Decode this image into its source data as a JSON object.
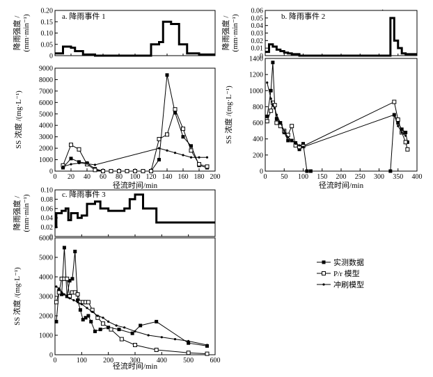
{
  "chart_data": [
    {
      "type": "line",
      "title": "a. 降雨事件 1",
      "rain_ylabel": "降雨强度 /",
      "rain_ylabel_unit": "(mm·min⁻¹)",
      "rain_ylim": [
        0,
        0.2
      ],
      "rain_yticks": [
        "0",
        "0.05",
        "0.10",
        "0.15",
        "0.20"
      ],
      "rain_ytick_values": [
        0,
        0.05,
        0.1,
        0.15,
        0.2
      ],
      "rain_steps": [
        [
          0,
          0.01
        ],
        [
          5,
          0.01
        ],
        [
          10,
          0.04
        ],
        [
          20,
          0.035
        ],
        [
          25,
          0.02
        ],
        [
          35,
          0.005
        ],
        [
          50,
          0
        ],
        [
          120,
          0
        ],
        [
          120,
          0.05
        ],
        [
          130,
          0.06
        ],
        [
          135,
          0.15
        ],
        [
          145,
          0.14
        ],
        [
          155,
          0.05
        ],
        [
          165,
          0.01
        ],
        [
          180,
          0.005
        ],
        [
          190,
          0.005
        ]
      ],
      "ss_ylabel": "SS 浓度 /(mg·L⁻¹)",
      "ss_ylim": [
        0,
        9000
      ],
      "ss_yticks": [
        "0",
        "1000",
        "2000",
        "3000",
        "4000",
        "5000",
        "6000",
        "7000",
        "8000",
        "9000"
      ],
      "ss_ytick_values": [
        0,
        1000,
        2000,
        3000,
        4000,
        5000,
        6000,
        7000,
        8000,
        9000
      ],
      "xlabel": "径流时间/min",
      "xlim": [
        0,
        200
      ],
      "xticks": [
        "0",
        "20",
        "40",
        "60",
        "80",
        "100",
        "120",
        "140",
        "160",
        "180",
        "200"
      ],
      "xtick_values": [
        0,
        20,
        40,
        60,
        80,
        100,
        120,
        140,
        160,
        180,
        200
      ],
      "series": [
        {
          "name": "实测数据",
          "marker": "filled-square",
          "x": [
            10,
            20,
            30,
            40,
            50,
            60,
            70,
            80,
            90,
            100,
            110,
            120,
            130,
            140,
            150,
            160,
            170,
            180,
            190
          ],
          "y": [
            300,
            1100,
            800,
            700,
            200,
            0,
            0,
            0,
            0,
            0,
            0,
            0,
            1000,
            8400,
            5100,
            3000,
            2200,
            500,
            300
          ]
        },
        {
          "name": "P/r 模型",
          "marker": "open-square",
          "x": [
            10,
            20,
            30,
            40,
            50,
            60,
            70,
            80,
            90,
            100,
            110,
            120,
            130,
            140,
            150,
            160,
            170,
            180,
            190
          ],
          "y": [
            500,
            2300,
            1900,
            600,
            100,
            0,
            0,
            0,
            0,
            0,
            0,
            0,
            2800,
            3200,
            5400,
            3700,
            1800,
            600,
            400
          ]
        },
        {
          "name": "冲刷模型",
          "marker": "dot",
          "x": [
            10,
            20,
            30,
            40,
            50,
            130,
            140,
            150,
            160,
            170,
            180,
            190
          ],
          "y": [
            400,
            600,
            700,
            650,
            550,
            2000,
            1800,
            1600,
            1400,
            1200,
            1200,
            1200
          ]
        }
      ]
    },
    {
      "type": "line",
      "title": "b. 降雨事件 2",
      "rain_ylabel": "降雨强度 /",
      "rain_ylabel_unit": "(mm·min⁻¹)",
      "rain_ylim": [
        0,
        0.06
      ],
      "rain_yticks": [
        "0",
        "0.01",
        "0.02",
        "0.03",
        "0.04",
        "0.05",
        "0.06"
      ],
      "rain_ytick_values": [
        0,
        0.01,
        0.02,
        0.03,
        0.04,
        0.05,
        0.06
      ],
      "rain_steps": [
        [
          0,
          0.005
        ],
        [
          10,
          0.015
        ],
        [
          20,
          0.012
        ],
        [
          30,
          0.008
        ],
        [
          40,
          0.006
        ],
        [
          50,
          0.004
        ],
        [
          60,
          0.003
        ],
        [
          70,
          0.002
        ],
        [
          90,
          0
        ],
        [
          330,
          0
        ],
        [
          330,
          0.05
        ],
        [
          340,
          0.02
        ],
        [
          350,
          0.01
        ],
        [
          360,
          0.003
        ],
        [
          370,
          0.002
        ]
      ],
      "ss_ylabel": "SS 浓度 /(mg·L⁻¹)",
      "ss_ylim": [
        0,
        1400
      ],
      "ss_yticks": [
        "0",
        "200",
        "400",
        "600",
        "800",
        "1000",
        "1200",
        "1400"
      ],
      "ss_ytick_values": [
        0,
        200,
        400,
        600,
        800,
        1000,
        1200,
        1400
      ],
      "xlabel": "径流时间/min",
      "xlim": [
        0,
        400
      ],
      "xticks": [
        "0",
        "50",
        "100",
        "150",
        "200",
        "250",
        "300",
        "350",
        "400"
      ],
      "xtick_values": [
        0,
        50,
        100,
        150,
        200,
        250,
        300,
        350,
        400
      ],
      "series": [
        {
          "name": "实测数据",
          "marker": "filled-square",
          "x": [
            5,
            15,
            20,
            25,
            30,
            40,
            50,
            60,
            70,
            80,
            90,
            100,
            110,
            120,
            330,
            340,
            350,
            360,
            370,
            375
          ],
          "y": [
            680,
            1000,
            1350,
            820,
            650,
            600,
            480,
            380,
            380,
            350,
            270,
            340,
            0,
            0,
            0,
            700,
            600,
            520,
            480,
            360
          ]
        },
        {
          "name": "P/r 模型",
          "marker": "open-square",
          "x": [
            5,
            15,
            20,
            25,
            30,
            40,
            50,
            60,
            70,
            80,
            90,
            100,
            340,
            350,
            360,
            370,
            375
          ],
          "y": [
            620,
            750,
            850,
            820,
            600,
            560,
            500,
            450,
            560,
            320,
            300,
            310,
            860,
            640,
            480,
            360,
            270
          ]
        },
        {
          "name": "冲刷模型",
          "marker": "dot",
          "x": [
            5,
            15,
            20,
            25,
            30,
            40,
            50,
            60,
            70,
            80,
            90,
            100,
            340,
            350,
            360,
            370
          ],
          "y": [
            1100,
            900,
            820,
            780,
            700,
            600,
            500,
            420,
            380,
            340,
            320,
            300,
            700,
            560,
            480,
            440
          ]
        }
      ]
    },
    {
      "type": "line",
      "title": "c. 降雨事件 3",
      "rain_ylabel": "降雨强度 /",
      "rain_ylabel_unit": "(mm·min⁻¹)",
      "rain_ylim": [
        0,
        0.1
      ],
      "rain_yticks": [
        "0",
        "0.02",
        "0.04",
        "0.06",
        "0.08",
        "0.10"
      ],
      "rain_ytick_values": [
        0,
        0.02,
        0.04,
        0.06,
        0.08,
        0.1
      ],
      "rain_steps": [
        [
          0,
          0.02
        ],
        [
          5,
          0.05
        ],
        [
          25,
          0.055
        ],
        [
          40,
          0.06
        ],
        [
          50,
          0.035
        ],
        [
          60,
          0.05
        ],
        [
          85,
          0.04
        ],
        [
          100,
          0.045
        ],
        [
          120,
          0.07
        ],
        [
          150,
          0.075
        ],
        [
          170,
          0.06
        ],
        [
          200,
          0.055
        ],
        [
          260,
          0.06
        ],
        [
          280,
          0.08
        ],
        [
          300,
          0.09
        ],
        [
          330,
          0.06
        ],
        [
          380,
          0.03
        ],
        [
          500,
          0.03
        ],
        [
          580,
          0.03
        ]
      ],
      "ss_ylabel": "SS 浓度 /(mg·L⁻¹)",
      "ss_ylim": [
        0,
        6000
      ],
      "ss_yticks": [
        "0",
        "1000",
        "2000",
        "3000",
        "4000",
        "5000",
        "6000"
      ],
      "ss_ytick_values": [
        0,
        1000,
        2000,
        3000,
        4000,
        5000,
        6000
      ],
      "xlabel": "径流时间/min",
      "xlim": [
        0,
        600
      ],
      "xticks": [
        "0",
        "100",
        "200",
        "300",
        "400",
        "500",
        "600"
      ],
      "xtick_values": [
        0,
        100,
        200,
        300,
        400,
        500,
        600
      ],
      "series": [
        {
          "name": "实测数据",
          "marker": "filled-square",
          "x": [
            5,
            15,
            25,
            35,
            45,
            55,
            65,
            75,
            85,
            95,
            105,
            115,
            125,
            135,
            150,
            170,
            200,
            240,
            290,
            320,
            380,
            500,
            570
          ],
          "y": [
            1700,
            3300,
            3100,
            5500,
            3000,
            3800,
            3900,
            5300,
            2800,
            2300,
            1800,
            1900,
            2000,
            1700,
            1200,
            1300,
            1400,
            1300,
            1100,
            1500,
            1700,
            600,
            450
          ]
        },
        {
          "name": "P/r 模型",
          "marker": "open-square",
          "x": [
            5,
            15,
            25,
            35,
            45,
            55,
            65,
            75,
            85,
            95,
            105,
            115,
            125,
            140,
            160,
            180,
            210,
            250,
            300,
            380,
            500,
            570
          ],
          "y": [
            2700,
            3200,
            3900,
            3900,
            3900,
            3000,
            3200,
            3200,
            3100,
            2700,
            2700,
            2700,
            2700,
            2300,
            1900,
            1600,
            1300,
            800,
            500,
            250,
            100,
            50
          ]
        },
        {
          "name": "冲刷模型",
          "marker": "dot",
          "x": [
            5,
            15,
            25,
            35,
            45,
            55,
            70,
            85,
            100,
            120,
            140,
            160,
            180,
            200,
            230,
            260,
            300,
            350,
            400,
            450,
            500,
            570
          ],
          "y": [
            3500,
            3400,
            3200,
            3100,
            3000,
            2900,
            2800,
            2700,
            2600,
            2400,
            2200,
            2000,
            1900,
            1700,
            1500,
            1400,
            1200,
            1000,
            900,
            800,
            700,
            500
          ]
        }
      ]
    }
  ],
  "legend": [
    {
      "label": "实测数据",
      "marker": "filled-square"
    },
    {
      "label": "P/r 模型",
      "marker": "open-square"
    },
    {
      "label": "冲刷模型",
      "marker": "dot"
    }
  ],
  "stray_mark": "·"
}
